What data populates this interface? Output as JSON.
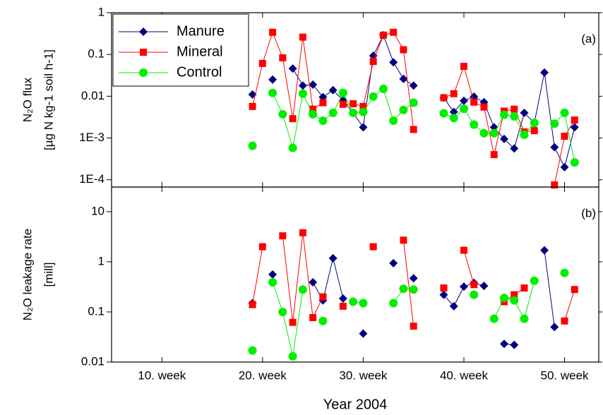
{
  "chart_data": [
    {
      "type": "line",
      "log_scale": true,
      "panel_label": "(a)",
      "ylabel": [
        "N₂O flux",
        "[µg N kg-1 soil h-1]"
      ],
      "x": [
        19,
        20,
        21,
        22,
        23,
        24,
        25,
        26,
        27,
        28,
        29,
        30,
        31,
        32,
        33,
        34,
        35,
        36,
        37,
        38,
        39,
        40,
        41,
        42,
        43,
        44,
        45,
        46,
        47,
        48,
        49,
        50,
        51
      ],
      "xlim": [
        5,
        53.4
      ],
      "ylim": [
        6.7e-05,
        1
      ],
      "yticks": [
        1,
        0.1,
        0.01,
        {
          "value": 0.001,
          "label": "1E-3"
        },
        {
          "value": 0.0001,
          "label": "1E-4"
        }
      ],
      "legend": "top-left",
      "series": [
        {
          "name": "Manure",
          "color": "#000080",
          "marker": "diamond",
          "values": [
            0.011,
            null,
            0.025,
            null,
            0.046,
            0.018,
            0.019,
            0.0095,
            0.014,
            0.008,
            0.004,
            0.0018,
            0.093,
            0.29,
            0.065,
            0.026,
            0.018,
            null,
            null,
            0.0092,
            0.0042,
            0.0078,
            0.0098,
            0.0072,
            0.0018,
            0.00095,
            0.00056,
            0.004,
            0.0023,
            0.037,
            0.0006,
            0.0002,
            0.0018
          ]
        },
        {
          "name": "Mineral",
          "color": "#ff0000",
          "marker": "square",
          "values": [
            0.0057,
            0.061,
            0.34,
            0.083,
            0.0029,
            0.26,
            0.0049,
            0.007,
            null,
            0.0064,
            0.0066,
            0.0057,
            0.068,
            0.29,
            0.34,
            0.13,
            0.0016,
            null,
            null,
            0.0092,
            0.0115,
            0.052,
            0.0072,
            0.0055,
            0.0004,
            0.0044,
            0.0049,
            0.0014,
            0.0015,
            null,
            7.5e-05,
            0.0011,
            0.0027
          ]
        },
        {
          "name": "Control",
          "color": "#00ee00",
          "marker": "circle",
          "values": [
            0.00065,
            null,
            0.012,
            0.0037,
            0.00058,
            0.0115,
            0.0037,
            0.0026,
            0.004,
            0.012,
            0.004,
            0.0042,
            0.0098,
            0.015,
            0.0026,
            0.0047,
            0.007,
            null,
            null,
            0.0039,
            0.003,
            0.005,
            0.0021,
            0.0013,
            0.0013,
            0.0036,
            0.0033,
            0.0012,
            0.0023,
            null,
            0.0022,
            0.004,
            0.00026
          ]
        }
      ]
    },
    {
      "type": "line",
      "log_scale": true,
      "panel_label": "(b)",
      "ylabel": [
        "N₂O leakage rate",
        "[mill]"
      ],
      "xlabel": "Year 2004",
      "x": [
        19,
        20,
        21,
        22,
        23,
        24,
        25,
        26,
        27,
        28,
        29,
        30,
        31,
        32,
        33,
        34,
        35,
        36,
        37,
        38,
        39,
        40,
        41,
        42,
        43,
        44,
        45,
        46,
        47,
        48,
        49,
        50,
        51
      ],
      "xlim": [
        5,
        53.4
      ],
      "ylim": [
        0.01,
        31
      ],
      "xticks": [
        {
          "value": 10,
          "label": "10. week"
        },
        {
          "value": 20,
          "label": "20. week"
        },
        {
          "value": 30,
          "label": "30. week"
        },
        {
          "value": 40,
          "label": "40. week"
        },
        {
          "value": 50,
          "label": "50. week"
        }
      ],
      "yticks": [
        0.01,
        0.1,
        1,
        10
      ],
      "series": [
        {
          "color": "#000080",
          "marker": "diamond",
          "values": [
            0.15,
            null,
            0.56,
            null,
            null,
            null,
            0.39,
            0.17,
            1.18,
            0.185,
            null,
            0.037,
            null,
            null,
            0.94,
            null,
            0.47,
            null,
            null,
            0.22,
            0.13,
            0.32,
            0.38,
            0.33,
            null,
            0.023,
            0.022,
            null,
            null,
            1.7,
            0.05,
            null,
            null
          ]
        },
        {
          "color": "#ff0000",
          "marker": "square",
          "values": [
            0.14,
            2.0,
            null,
            3.3,
            0.062,
            3.8,
            0.077,
            0.2,
            null,
            0.13,
            null,
            null,
            2.0,
            null,
            null,
            2.7,
            0.052,
            null,
            null,
            0.3,
            null,
            1.7,
            0.35,
            null,
            null,
            0.16,
            0.22,
            0.3,
            null,
            null,
            null,
            0.066,
            0.28
          ]
        },
        {
          "color": "#00ee00",
          "marker": "circle",
          "values": [
            0.017,
            null,
            0.39,
            0.1,
            0.013,
            0.28,
            null,
            0.066,
            null,
            null,
            0.16,
            0.15,
            null,
            null,
            0.15,
            0.29,
            0.28,
            null,
            null,
            null,
            null,
            null,
            0.22,
            null,
            0.073,
            0.19,
            0.17,
            0.073,
            0.42,
            null,
            null,
            0.6,
            null
          ]
        }
      ]
    }
  ]
}
